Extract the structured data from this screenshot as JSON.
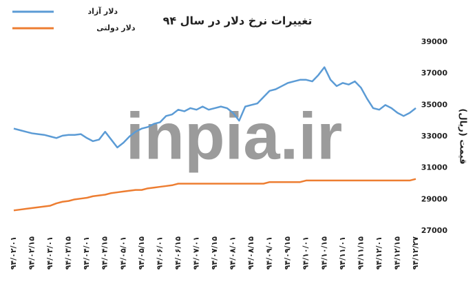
{
  "chart_data": {
    "type": "line",
    "title": "تغییرات نرخ دلار در سال ۹۴",
    "y_axis_label": "قیمت (ریال)",
    "watermark": "inpia.ir",
    "categories": [
      "۹۴/۰۲/۰۱",
      null,
      null,
      "۹۴/۰۲/۱۵",
      null,
      null,
      "۹۴/۰۳/۰۱",
      null,
      null,
      "۹۴/۰۳/۱۵",
      null,
      null,
      "۹۴/۰۴/۰۱",
      null,
      null,
      "۹۴/۰۴/۱۵",
      null,
      null,
      "۹۴/۰۵/۰۱",
      null,
      null,
      "۹۴/۰۵/۱۵",
      null,
      null,
      "۹۴/۰۶/۰۱",
      null,
      null,
      "۹۴/۰۶/۱۵",
      null,
      null,
      "۹۴/۰۷/۰۱",
      null,
      null,
      "۹۴/۰۷/۱۵",
      null,
      null,
      "۹۴/۰۸/۰۱",
      null,
      null,
      "۹۴/۰۸/۱۵",
      null,
      null,
      "۹۴/۰۹/۰۱",
      null,
      null,
      "۹۴/۰۹/۱۵",
      null,
      null,
      "۹۴/۱۰/۰۱",
      null,
      null,
      "۹۴/۱۰/۱۵",
      null,
      null,
      "۹۴/۱۱/۰۱",
      null,
      null,
      "۹۴/۱۱/۱۵",
      null,
      null,
      "۹۴/۱۲/۰۱",
      null,
      null,
      "۹۴/۱۲/۱۵",
      null,
      null,
      "۹۴/۱۲/۲۷"
    ],
    "series": [
      {
        "name": "دلار آزاد",
        "color": "#5b9bd5",
        "values": [
          33500,
          33400,
          33300,
          33200,
          33150,
          33100,
          33000,
          32900,
          33050,
          33100,
          33100,
          33150,
          32900,
          32700,
          32800,
          33300,
          32800,
          32300,
          32600,
          33000,
          33300,
          33500,
          33600,
          33800,
          33900,
          34300,
          34400,
          34700,
          34600,
          34800,
          34700,
          34900,
          34700,
          34800,
          34900,
          34800,
          34500,
          34000,
          34900,
          35000,
          35100,
          35500,
          35900,
          36000,
          36200,
          36400,
          36500,
          36600,
          36600,
          36500,
          36900,
          37400,
          36600,
          36200,
          36400,
          36300,
          36500,
          36100,
          35400,
          34800,
          34700,
          35000,
          34800,
          34500,
          34300,
          34500,
          34800
        ]
      },
      {
        "name": "دلار دولتی",
        "color": "#ed7d31",
        "values": [
          28300,
          28350,
          28400,
          28450,
          28500,
          28550,
          28600,
          28750,
          28850,
          28900,
          29000,
          29050,
          29100,
          29200,
          29250,
          29300,
          29400,
          29450,
          29500,
          29550,
          29600,
          29600,
          29700,
          29750,
          29800,
          29850,
          29900,
          30000,
          30000,
          30000,
          30000,
          30000,
          30000,
          30000,
          30000,
          30000,
          30000,
          30000,
          30000,
          30000,
          30000,
          30000,
          30100,
          30100,
          30100,
          30100,
          30100,
          30100,
          30200,
          30200,
          30200,
          30200,
          30200,
          30200,
          30200,
          30200,
          30200,
          30200,
          30200,
          30200,
          30200,
          30200,
          30200,
          30200,
          30200,
          30200,
          30300
        ]
      }
    ],
    "ylim": [
      27000,
      39000
    ],
    "yticks": [
      27000,
      29000,
      31000,
      33000,
      35000,
      37000,
      39000
    ],
    "y_axis_side": "right",
    "grid": false,
    "legend": "top-left"
  }
}
